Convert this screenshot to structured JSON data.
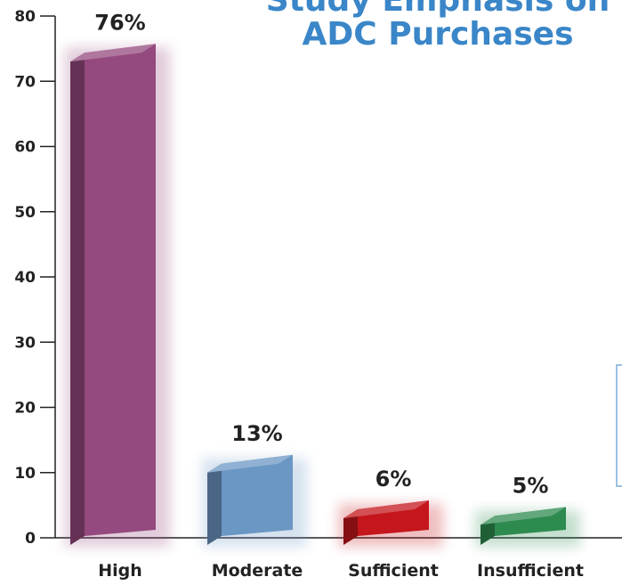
{
  "chart_data": {
    "type": "bar",
    "title_lines": [
      "Study Emphasis on",
      "ADC Purchases"
    ],
    "categories": [
      "High",
      "Moderate",
      "Sufficient",
      "Insufficient"
    ],
    "values": [
      76,
      13,
      6,
      5
    ],
    "value_labels": [
      "76%",
      "13%",
      "6%",
      "5%"
    ],
    "yticks": [
      "0",
      "10",
      "20",
      "30",
      "40",
      "50",
      "60",
      "70",
      "80"
    ],
    "ylim": [
      0,
      80
    ],
    "xlabel": "",
    "ylabel": "",
    "grid": false,
    "colors": [
      "#944a7e",
      "#6b97c4",
      "#c4161c",
      "#2e8b50"
    ],
    "title_color": "#3a86c8"
  }
}
